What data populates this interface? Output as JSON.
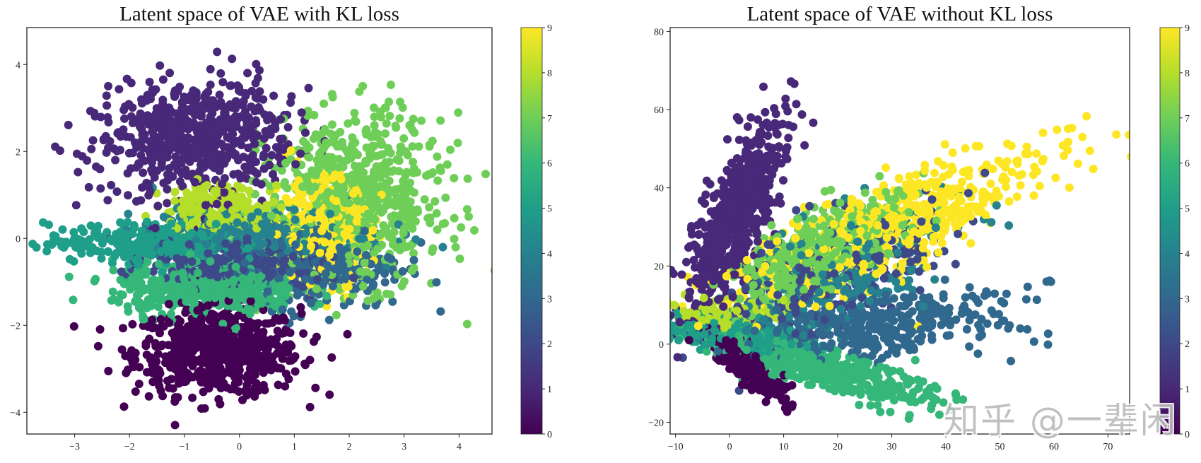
{
  "colormap": [
    "#440154",
    "#482878",
    "#3e4989",
    "#31688e",
    "#26828e",
    "#1f9e89",
    "#35b779",
    "#6ece58",
    "#b5de2b",
    "#fde725"
  ],
  "watermark": "知乎 @一辈闲",
  "chart_data": [
    {
      "type": "scatter",
      "title": "Latent space of VAE with KL loss",
      "xlabel": "",
      "ylabel": "",
      "xlim": [
        -3.87,
        4.6
      ],
      "ylim": [
        -4.5,
        4.85
      ],
      "xticks": [
        -3,
        -2,
        -1,
        0,
        1,
        2,
        3,
        4
      ],
      "yticks": [
        -4,
        -2,
        0,
        2,
        4
      ],
      "colorbar": {
        "range": [
          0,
          9
        ],
        "ticks": [
          0,
          1,
          2,
          3,
          4,
          5,
          6,
          7,
          8,
          9
        ]
      },
      "clusters": [
        {
          "label": 0,
          "center": [
            -0.4,
            -2.6
          ],
          "sd": [
            0.75,
            0.5
          ],
          "angle": 0,
          "n": 650
        },
        {
          "label": 1,
          "center": [
            -0.8,
            2.3
          ],
          "sd": [
            0.85,
            0.65
          ],
          "angle": 10,
          "n": 650
        },
        {
          "label": 2,
          "center": [
            0.0,
            -0.6
          ],
          "sd": [
            0.8,
            0.3
          ],
          "angle": -5,
          "n": 300
        },
        {
          "label": 3,
          "center": [
            1.4,
            -0.6
          ],
          "sd": [
            0.8,
            0.5
          ],
          "angle": 0,
          "n": 300
        },
        {
          "label": 4,
          "center": [
            0.4,
            0.1
          ],
          "sd": [
            1.0,
            0.3
          ],
          "angle": 0,
          "n": 300
        },
        {
          "label": 5,
          "center": [
            -1.5,
            -0.1
          ],
          "sd": [
            1.0,
            0.22
          ],
          "angle": 0,
          "n": 300
        },
        {
          "label": 6,
          "center": [
            -0.6,
            -1.15
          ],
          "sd": [
            0.85,
            0.3
          ],
          "angle": 0,
          "n": 450
        },
        {
          "label": 7,
          "center": [
            2.1,
            0.9
          ],
          "sd": [
            0.8,
            0.95
          ],
          "angle": 0,
          "n": 700
        },
        {
          "label": 8,
          "center": [
            -0.3,
            0.7
          ],
          "sd": [
            0.55,
            0.28
          ],
          "angle": 0,
          "n": 200
        },
        {
          "label": 9,
          "center": [
            1.5,
            0.2
          ],
          "sd": [
            0.45,
            0.6
          ],
          "angle": 0,
          "n": 400
        }
      ]
    },
    {
      "type": "scatter",
      "title": "Latent space of VAE without KL loss",
      "xlabel": "",
      "ylabel": "",
      "xlim": [
        -11,
        74
      ],
      "ylim": [
        -23,
        81
      ],
      "xticks": [
        -10,
        0,
        10,
        20,
        30,
        40,
        50,
        60,
        70
      ],
      "yticks": [
        -20,
        0,
        20,
        40,
        60,
        80
      ],
      "colorbar": {
        "range": [
          0,
          9
        ],
        "ticks": [
          0,
          1,
          2,
          3,
          4,
          5,
          6,
          7,
          8,
          9
        ]
      },
      "clusters": [
        {
          "label": 0,
          "center": [
            3,
            -5
          ],
          "sd": [
            5,
            1.5
          ],
          "angle": -50,
          "n": 350
        },
        {
          "label": 1,
          "center": [
            1,
            32
          ],
          "sd": [
            13,
            2.8
          ],
          "angle": 74,
          "n": 600
        },
        {
          "label": 2,
          "center": [
            20,
            18
          ],
          "sd": [
            14,
            6
          ],
          "angle": 38,
          "n": 250
        },
        {
          "label": 3,
          "center": [
            25,
            5
          ],
          "sd": [
            14,
            4
          ],
          "angle": 5,
          "n": 400
        },
        {
          "label": 4,
          "center": [
            20,
            18
          ],
          "sd": [
            12,
            6
          ],
          "angle": 35,
          "n": 250
        },
        {
          "label": 5,
          "center": [
            0,
            3
          ],
          "sd": [
            6,
            2
          ],
          "angle": -10,
          "n": 250
        },
        {
          "label": 6,
          "center": [
            17,
            -6
          ],
          "sd": [
            11,
            2.5
          ],
          "angle": -22,
          "n": 500
        },
        {
          "label": 7,
          "center": [
            17,
            24
          ],
          "sd": [
            9,
            4
          ],
          "angle": 40,
          "n": 500
        },
        {
          "label": 8,
          "center": [
            0,
            7
          ],
          "sd": [
            4,
            2
          ],
          "angle": 0,
          "n": 150
        },
        {
          "label": 9,
          "center": [
            30,
            30
          ],
          "sd": [
            17,
            5
          ],
          "angle": 33,
          "n": 600
        }
      ]
    }
  ]
}
